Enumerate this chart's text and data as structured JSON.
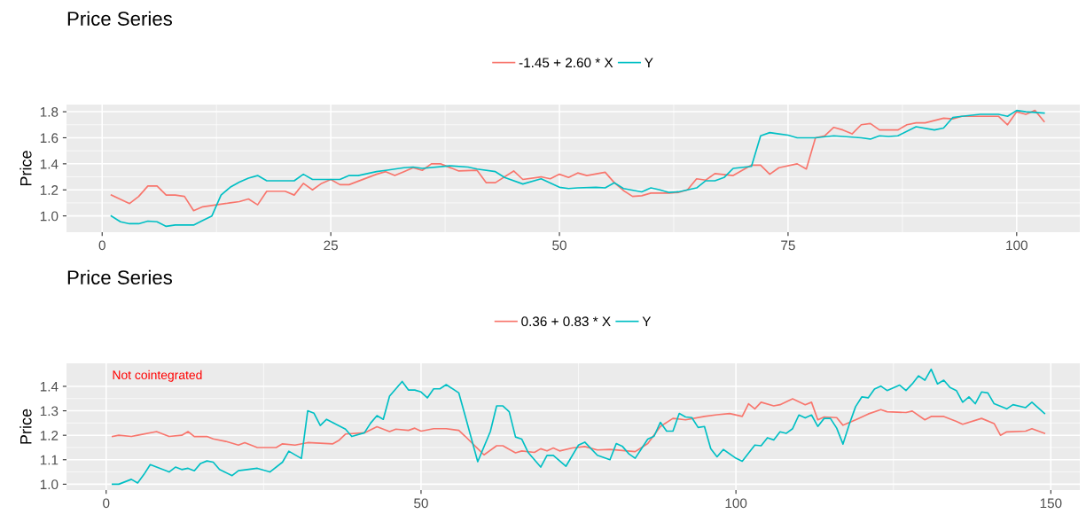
{
  "chart_data": [
    {
      "type": "line",
      "title": "Price Series",
      "ylabel": "Price",
      "legend": "top",
      "grid": true,
      "xlim": [
        -3.9,
        106.9
      ],
      "xticks": [
        0,
        25,
        50,
        75,
        100
      ],
      "ylim": [
        0.875,
        1.855
      ],
      "yticks": [
        {
          "value": 1.0,
          "label": "1.0"
        },
        {
          "value": 1.2,
          "label": "1.2"
        },
        {
          "value": 1.4,
          "label": "1.4"
        },
        {
          "value": 1.6,
          "label": "1.6"
        },
        {
          "value": 1.8,
          "label": "1.8"
        }
      ],
      "series": [
        {
          "name": "-1.45 + 2.60 * X",
          "color": "#f8766d",
          "x": [
            1,
            3,
            4,
            5,
            6,
            7,
            8,
            9,
            10,
            11,
            12,
            14,
            15,
            16,
            17,
            18,
            20,
            21,
            22,
            23,
            24,
            25,
            26,
            27,
            30,
            31,
            32,
            33,
            34,
            35,
            36,
            37,
            39,
            41,
            42,
            43,
            45,
            46,
            48,
            49,
            50,
            51,
            52,
            53,
            55,
            56,
            57,
            58,
            59,
            60,
            62,
            63,
            64,
            65,
            66,
            67,
            69,
            71,
            72,
            73,
            74,
            76,
            77,
            78,
            79,
            80,
            81,
            82,
            83,
            84,
            85,
            87,
            88,
            89,
            90,
            92,
            93,
            94,
            96,
            98,
            99,
            100,
            101,
            102,
            103
          ],
          "values": [
            1.16,
            1.095,
            1.15,
            1.23,
            1.23,
            1.16,
            1.16,
            1.15,
            1.04,
            1.07,
            1.08,
            1.1,
            1.11,
            1.13,
            1.085,
            1.19,
            1.19,
            1.16,
            1.25,
            1.2,
            1.25,
            1.28,
            1.24,
            1.24,
            1.32,
            1.34,
            1.31,
            1.34,
            1.37,
            1.35,
            1.4,
            1.4,
            1.345,
            1.35,
            1.255,
            1.255,
            1.345,
            1.28,
            1.3,
            1.285,
            1.32,
            1.295,
            1.33,
            1.31,
            1.335,
            1.255,
            1.195,
            1.15,
            1.155,
            1.175,
            1.175,
            1.18,
            1.2,
            1.285,
            1.275,
            1.325,
            1.31,
            1.39,
            1.39,
            1.32,
            1.37,
            1.4,
            1.36,
            1.6,
            1.615,
            1.68,
            1.66,
            1.63,
            1.7,
            1.71,
            1.66,
            1.66,
            1.7,
            1.715,
            1.715,
            1.75,
            1.745,
            1.765,
            1.765,
            1.765,
            1.7,
            1.8,
            1.78,
            1.81,
            1.725
          ]
        },
        {
          "name": "Y",
          "color": "#00bfc4",
          "x": [
            1,
            2,
            3,
            4,
            5,
            6,
            7,
            8,
            10,
            11,
            12,
            13,
            14,
            15,
            16,
            17,
            18,
            21,
            22,
            23,
            24,
            26,
            27,
            28,
            30,
            31,
            33,
            34,
            35,
            38,
            40,
            41,
            43,
            44,
            46,
            48,
            50,
            51,
            52,
            54,
            55,
            56,
            57,
            59,
            60,
            61,
            62,
            63,
            65,
            66,
            67,
            68,
            69,
            71,
            72,
            73,
            74,
            75,
            76,
            78,
            80,
            83,
            84,
            85,
            86,
            87,
            89,
            91,
            92,
            93,
            94,
            96,
            98,
            99,
            100,
            101,
            103
          ],
          "values": [
            1.0,
            0.955,
            0.94,
            0.94,
            0.96,
            0.955,
            0.92,
            0.93,
            0.93,
            0.965,
            1.0,
            1.16,
            1.22,
            1.26,
            1.29,
            1.31,
            1.27,
            1.27,
            1.32,
            1.28,
            1.28,
            1.28,
            1.31,
            1.31,
            1.34,
            1.35,
            1.37,
            1.375,
            1.365,
            1.385,
            1.375,
            1.36,
            1.34,
            1.295,
            1.245,
            1.285,
            1.22,
            1.21,
            1.215,
            1.22,
            1.215,
            1.255,
            1.21,
            1.185,
            1.215,
            1.2,
            1.18,
            1.185,
            1.215,
            1.27,
            1.27,
            1.295,
            1.365,
            1.38,
            1.615,
            1.64,
            1.63,
            1.62,
            1.6,
            1.6,
            1.615,
            1.6,
            1.59,
            1.615,
            1.61,
            1.615,
            1.685,
            1.66,
            1.675,
            1.755,
            1.765,
            1.78,
            1.78,
            1.765,
            1.81,
            1.8,
            1.79
          ]
        }
      ]
    },
    {
      "type": "line",
      "title": "Price Series",
      "ylabel": "Price",
      "legend": "top",
      "grid": true,
      "annotations": [
        "Not cointegrated"
      ],
      "xlim": [
        -6.3,
        154.6
      ],
      "xticks": [
        0,
        50,
        100,
        150
      ],
      "ylim": [
        0.976,
        1.494
      ],
      "yticks": [
        {
          "value": 1.0,
          "label": "1.0"
        },
        {
          "value": 1.1,
          "label": "1.1"
        },
        {
          "value": 1.2,
          "label": "1.2"
        },
        {
          "value": 1.3,
          "label": "1.3"
        },
        {
          "value": 1.4,
          "label": "1.4"
        }
      ],
      "series": [
        {
          "name": "0.36 + 0.83 * X",
          "color": "#f8766d",
          "x": [
            1,
            2,
            4,
            5,
            8,
            10,
            12,
            13,
            14,
            16,
            17,
            19,
            21,
            22,
            24,
            27,
            28,
            30,
            32,
            36,
            37,
            38,
            41,
            43,
            45,
            46,
            48,
            49,
            50,
            52,
            54,
            56,
            57,
            60,
            62,
            63,
            65,
            66,
            68,
            69,
            70,
            71,
            72,
            74,
            76,
            78,
            80,
            84,
            86,
            88,
            90,
            92,
            95,
            97,
            99,
            101,
            102,
            103,
            104,
            106,
            107,
            109,
            111,
            112,
            113,
            114,
            116,
            117,
            119,
            121,
            123,
            124,
            127,
            128,
            130,
            131,
            133,
            135,
            136,
            139,
            141,
            142,
            143,
            146,
            147,
            149
          ],
          "values": [
            1.195,
            1.2,
            1.195,
            1.2,
            1.215,
            1.195,
            1.2,
            1.215,
            1.195,
            1.195,
            1.185,
            1.175,
            1.16,
            1.17,
            1.15,
            1.15,
            1.165,
            1.16,
            1.17,
            1.165,
            1.18,
            1.205,
            1.21,
            1.235,
            1.215,
            1.225,
            1.22,
            1.229,
            1.217,
            1.227,
            1.227,
            1.22,
            1.196,
            1.12,
            1.157,
            1.157,
            1.128,
            1.136,
            1.13,
            1.145,
            1.136,
            1.148,
            1.136,
            1.148,
            1.154,
            1.14,
            1.142,
            1.133,
            1.166,
            1.236,
            1.269,
            1.263,
            1.277,
            1.284,
            1.289,
            1.277,
            1.329,
            1.308,
            1.335,
            1.32,
            1.325,
            1.349,
            1.325,
            1.335,
            1.263,
            1.275,
            1.272,
            1.241,
            1.263,
            1.287,
            1.305,
            1.296,
            1.293,
            1.299,
            1.263,
            1.277,
            1.277,
            1.257,
            1.245,
            1.269,
            1.248,
            1.2,
            1.214,
            1.217,
            1.227,
            1.208
          ]
        },
        {
          "name": "Y",
          "color": "#00bfc4",
          "x": [
            1,
            2,
            4,
            5,
            6,
            7,
            8,
            10,
            11,
            12,
            13,
            14,
            15,
            16,
            17,
            18,
            20,
            21,
            24,
            26,
            28,
            29,
            31,
            32,
            33,
            34,
            35,
            38,
            39,
            41,
            42,
            43,
            44,
            45,
            47,
            48,
            49,
            50,
            51,
            52,
            53,
            54,
            56,
            57,
            59,
            61,
            62,
            63,
            64,
            65,
            66,
            67,
            69,
            70,
            71,
            73,
            75,
            76,
            78,
            80,
            81,
            82,
            83,
            84,
            86,
            87,
            88,
            89,
            90,
            91,
            92,
            93,
            94,
            95,
            96,
            97,
            98,
            100,
            101,
            103,
            104,
            105,
            106,
            107,
            108,
            109,
            110,
            111,
            112,
            113,
            114,
            115,
            116,
            117,
            118,
            119,
            120,
            121,
            122,
            123,
            124,
            126,
            127,
            128,
            129,
            130,
            131,
            132,
            133,
            134,
            135,
            136,
            137,
            138,
            139,
            140,
            141,
            143,
            144,
            146,
            147,
            149
          ],
          "values": [
            1.0,
            1.0,
            1.02,
            1.005,
            1.04,
            1.08,
            1.07,
            1.05,
            1.07,
            1.06,
            1.065,
            1.055,
            1.085,
            1.095,
            1.09,
            1.06,
            1.035,
            1.055,
            1.065,
            1.05,
            1.09,
            1.135,
            1.105,
            1.3,
            1.29,
            1.24,
            1.265,
            1.225,
            1.195,
            1.21,
            1.25,
            1.28,
            1.265,
            1.36,
            1.42,
            1.385,
            1.385,
            1.377,
            1.353,
            1.39,
            1.39,
            1.407,
            1.373,
            1.28,
            1.092,
            1.215,
            1.32,
            1.32,
            1.296,
            1.193,
            1.184,
            1.13,
            1.07,
            1.118,
            1.118,
            1.073,
            1.16,
            1.172,
            1.118,
            1.1,
            1.166,
            1.154,
            1.124,
            1.106,
            1.184,
            1.196,
            1.253,
            1.217,
            1.217,
            1.289,
            1.275,
            1.272,
            1.232,
            1.236,
            1.145,
            1.112,
            1.142,
            1.106,
            1.094,
            1.16,
            1.157,
            1.19,
            1.181,
            1.214,
            1.208,
            1.227,
            1.283,
            1.271,
            1.283,
            1.236,
            1.269,
            1.269,
            1.229,
            1.164,
            1.245,
            1.317,
            1.357,
            1.353,
            1.389,
            1.401,
            1.383,
            1.405,
            1.383,
            1.41,
            1.443,
            1.425,
            1.47,
            1.41,
            1.425,
            1.395,
            1.383,
            1.335,
            1.357,
            1.329,
            1.377,
            1.373,
            1.329,
            1.308,
            1.325,
            1.313,
            1.335,
            1.289
          ]
        }
      ]
    }
  ]
}
